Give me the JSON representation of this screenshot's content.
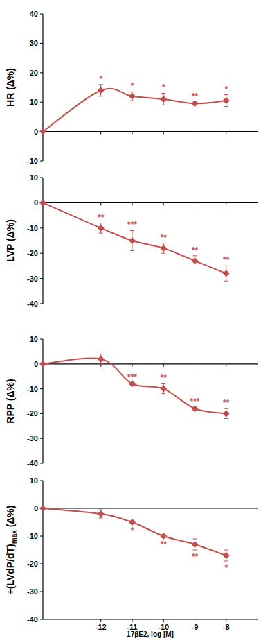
{
  "chart_data": [
    {
      "type": "line",
      "y_label": "HR (Δ%)",
      "color": "#c0504d",
      "marker": "diamond",
      "x": [
        -13.85,
        -12,
        -11,
        -10,
        -9,
        -8
      ],
      "values": [
        0,
        14,
        12,
        11,
        9.5,
        10.5
      ],
      "errors": [
        null,
        2,
        1.5,
        2,
        0.5,
        2
      ],
      "annotations": [
        null,
        "*",
        "*",
        "*",
        "**",
        "*"
      ],
      "xlim": [
        -13.85,
        -7
      ],
      "xticks": [
        -12,
        -11,
        -10,
        -9,
        -8
      ],
      "ylim": [
        -10,
        40
      ],
      "yticks": [
        -10,
        0,
        10,
        20,
        30,
        40
      ],
      "tick_labels": "y"
    },
    {
      "type": "line",
      "y_label": "LVP (Δ%)",
      "color": "#c0504d",
      "marker": "diamond",
      "x": [
        -13.85,
        -12,
        -11,
        -10,
        -9,
        -8
      ],
      "values": [
        0,
        -10,
        -15,
        -18,
        -23,
        -28
      ],
      "errors": [
        null,
        2,
        4,
        2,
        2,
        3
      ],
      "annotations": [
        null,
        "**",
        "***",
        "**",
        "**",
        "**"
      ],
      "xlim": [
        -13.85,
        -7
      ],
      "xticks": [
        -12,
        -11,
        -10,
        -9,
        -8
      ],
      "ylim": [
        -40,
        10
      ],
      "yticks": [
        -40,
        -30,
        -20,
        -10,
        0,
        10
      ],
      "tick_labels": "y"
    },
    {
      "type": "line",
      "y_label": "RPP (Δ%)",
      "color": "#c0504d",
      "marker": "diamond",
      "x": [
        -13.85,
        -12,
        -11,
        -10,
        -9,
        -8
      ],
      "values": [
        0,
        2,
        -8,
        -10,
        -18,
        -20
      ],
      "errors": [
        null,
        2,
        0.5,
        2,
        0.5,
        2
      ],
      "annotations": [
        null,
        null,
        "***",
        "**",
        "***",
        "**"
      ],
      "xlim": [
        -13.85,
        -7
      ],
      "xticks": [
        -12,
        -11,
        -10,
        -9,
        -8
      ],
      "ylim": [
        -40,
        10
      ],
      "yticks": [
        -40,
        -30,
        -20,
        -10,
        0,
        10
      ],
      "tick_labels": "y"
    },
    {
      "type": "line",
      "y_label": "+(LVdP/dT)max (Δ%)",
      "x_label": "17βE2, log [M]",
      "color": "#c0504d",
      "marker": "diamond",
      "x": [
        -13.85,
        -12,
        -11,
        -10,
        -9,
        -8
      ],
      "values": [
        0,
        -2,
        -5,
        -10,
        -13,
        -17
      ],
      "errors": [
        null,
        1.5,
        0.5,
        0.5,
        2,
        2
      ],
      "annotations": [
        null,
        null,
        "*",
        "**",
        "**",
        "*"
      ],
      "xlim": [
        -13.85,
        -7
      ],
      "xticks": [
        -12,
        -11,
        -10,
        -9,
        -8
      ],
      "ylim": [
        -40,
        10
      ],
      "yticks": [
        -40,
        -30,
        -20,
        -10,
        0,
        10
      ],
      "tick_labels": true
    }
  ]
}
